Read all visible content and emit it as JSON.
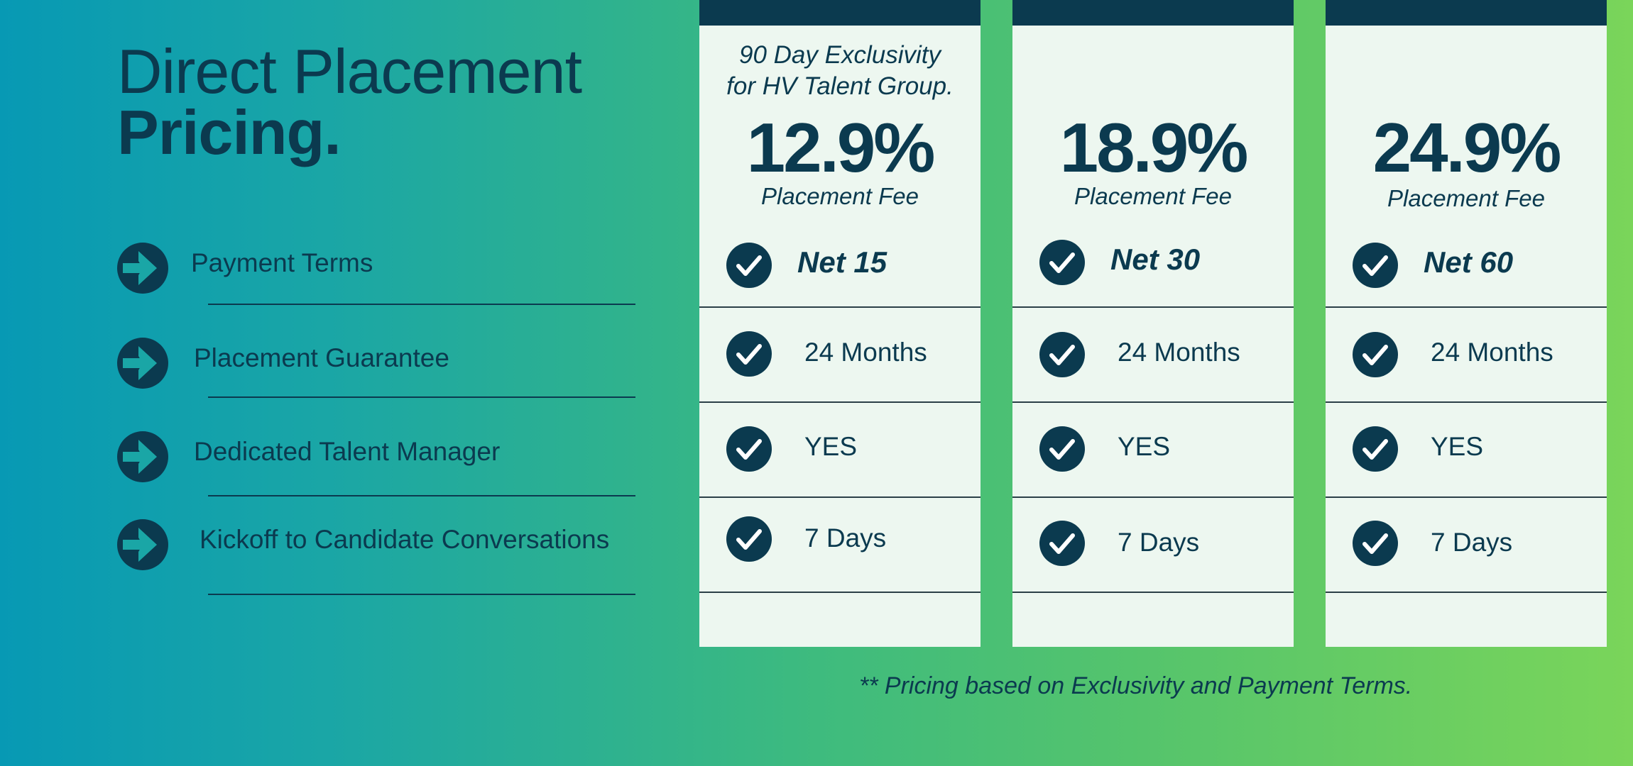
{
  "title": {
    "line1": "Direct Placement",
    "line2": "Pricing."
  },
  "features": [
    {
      "label": "Payment Terms",
      "icon": "arrow-right-circle-icon"
    },
    {
      "label": "Placement Guarantee",
      "icon": "arrow-right-circle-icon"
    },
    {
      "label": "Dedicated Talent Manager",
      "icon": "arrow-right-circle-icon"
    },
    {
      "label": "Kickoff to Candidate Conversations",
      "icon": "arrow-right-circle-icon"
    }
  ],
  "plans": [
    {
      "note_line1": "90 Day Exclusivity",
      "note_line2": "for HV Talent Group.",
      "price": "12.9%",
      "fee_label": "Placement Fee",
      "payment_terms": "Net 15",
      "guarantee": "24 Months",
      "talent_manager": "YES",
      "kickoff": "7 Days"
    },
    {
      "note_line1": "",
      "note_line2": "",
      "price": "18.9%",
      "fee_label": "Placement Fee",
      "payment_terms": "Net 30",
      "guarantee": "24 Months",
      "talent_manager": "YES",
      "kickoff": "7 Days"
    },
    {
      "note_line1": "",
      "note_line2": "",
      "price": "24.9%",
      "fee_label": "Placement Fee",
      "payment_terms": "Net 60",
      "guarantee": "24 Months",
      "talent_manager": "YES",
      "kickoff": "7 Days"
    }
  ],
  "footnote": "** Pricing based on Exclusivity and Payment Terms.",
  "colors": {
    "navy": "#0b3a4f",
    "card_background": "#edf7f0",
    "gradient_start": "#0799b4",
    "gradient_end": "#7ad55a"
  }
}
